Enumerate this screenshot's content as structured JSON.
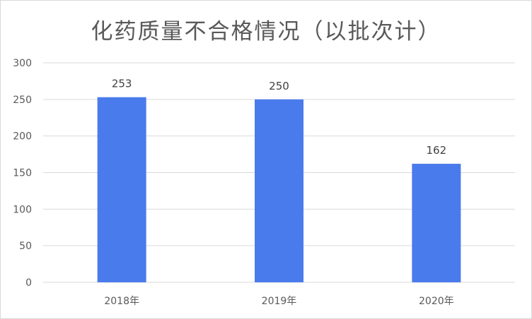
{
  "chart_data": {
    "type": "bar",
    "title": "化药质量不合格情况（以批次计）",
    "categories": [
      "2018年",
      "2019年",
      "2020年"
    ],
    "values": [
      253,
      250,
      162
    ],
    "ylim": [
      0,
      300
    ],
    "yticks": [
      0,
      50,
      100,
      150,
      200,
      250,
      300
    ],
    "grid": true,
    "data_labels": true,
    "bar_color": "#4a7bec",
    "gridline_color": "#d9d9d9"
  }
}
